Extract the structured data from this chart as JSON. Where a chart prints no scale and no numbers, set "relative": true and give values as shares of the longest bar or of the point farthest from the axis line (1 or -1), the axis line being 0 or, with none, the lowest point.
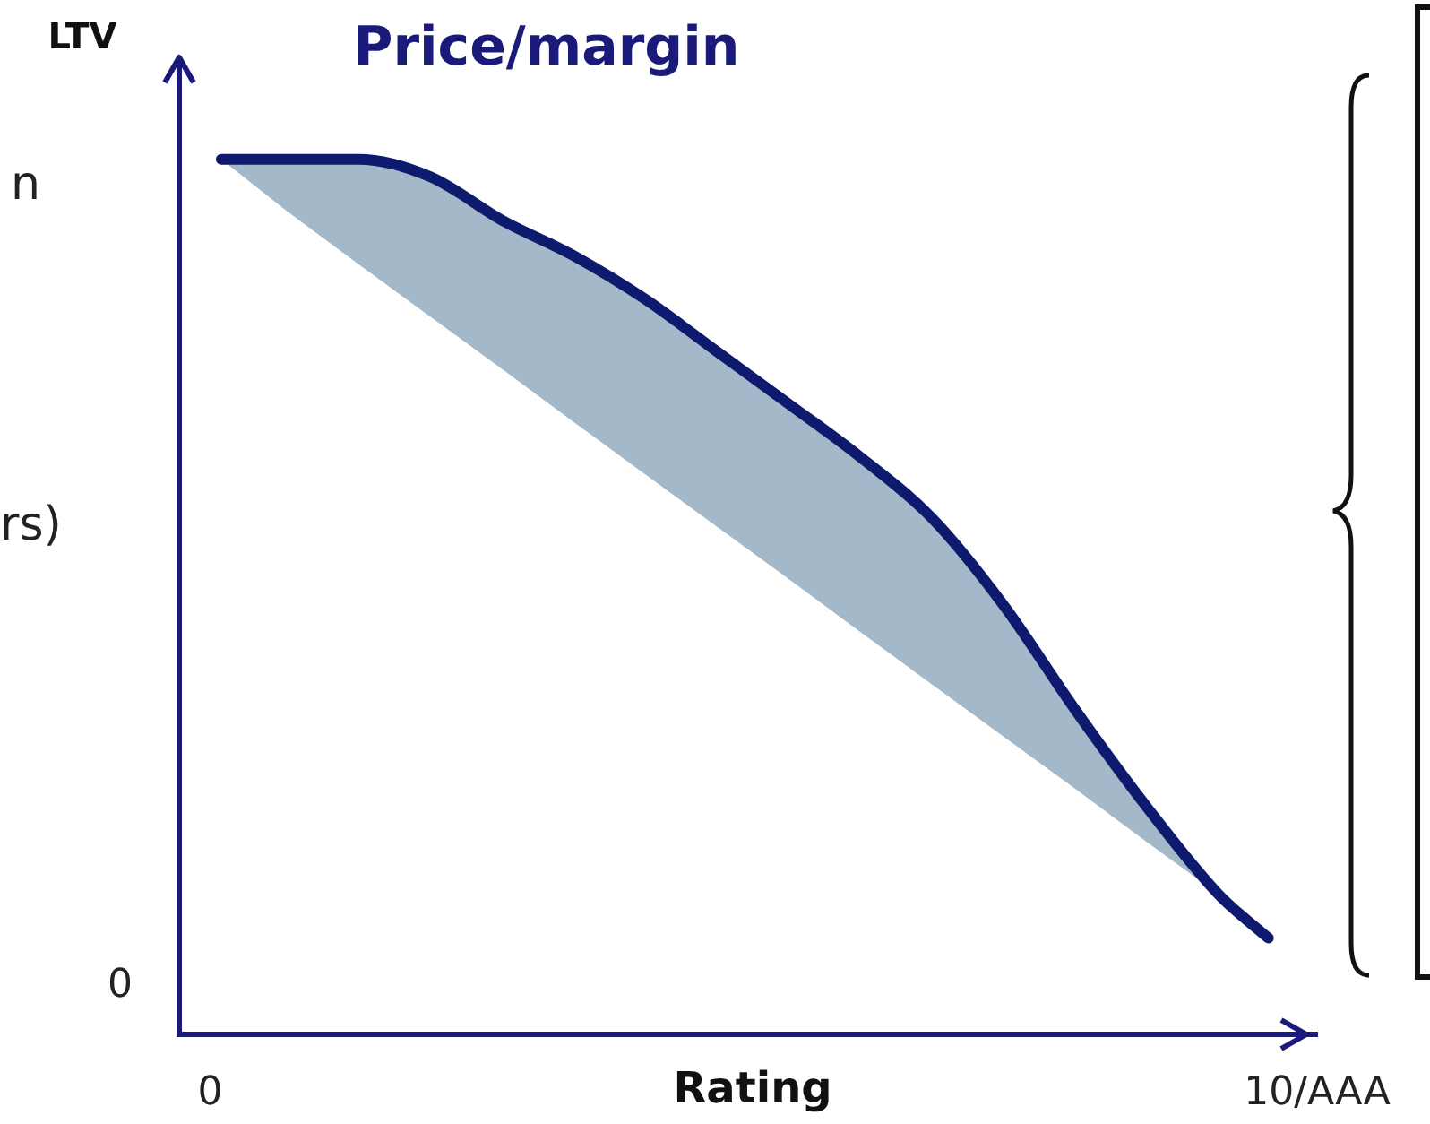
{
  "chart_data": {
    "type": "line",
    "title": "Price/margin",
    "xlabel": "Rating",
    "ylabel": "LTV",
    "relative": true,
    "xlim": [
      -0.28,
      10
    ],
    "xticks": [
      0,
      {
        "value": 10,
        "label": "10/AAA"
      }
    ],
    "grid": false,
    "legend": false,
    "marker": "none",
    "line_style": "solid",
    "annotations": [
      "0",
      "n",
      "rs)"
    ],
    "series": [
      {
        "color": "#0e1a6e",
        "x": [
          0.1,
          0.7,
          1.34,
          1.99,
          2.64,
          3.28,
          3.93,
          4.58,
          5.23,
          5.87,
          6.52,
          7.17,
          7.82,
          8.46,
          9.11,
          9.56
        ],
        "values": [
          1.0,
          1.0,
          1.0,
          0.98,
          0.93,
          0.89,
          0.84,
          0.78,
          0.72,
          0.66,
          0.59,
          0.49,
          0.37,
          0.26,
          0.16,
          0.11
        ],
        "lower": [
          1.0,
          0.94,
          0.88,
          0.82,
          0.76,
          0.7,
          0.64,
          0.58,
          0.52,
          0.46,
          0.4,
          0.34,
          0.28,
          0.22,
          0.16,
          0.11
        ],
        "upper": [
          1.0,
          1.0,
          1.0,
          0.98,
          0.93,
          0.89,
          0.84,
          0.78,
          0.72,
          0.66,
          0.59,
          0.49,
          0.37,
          0.26,
          0.16,
          0.11
        ]
      }
    ]
  }
}
